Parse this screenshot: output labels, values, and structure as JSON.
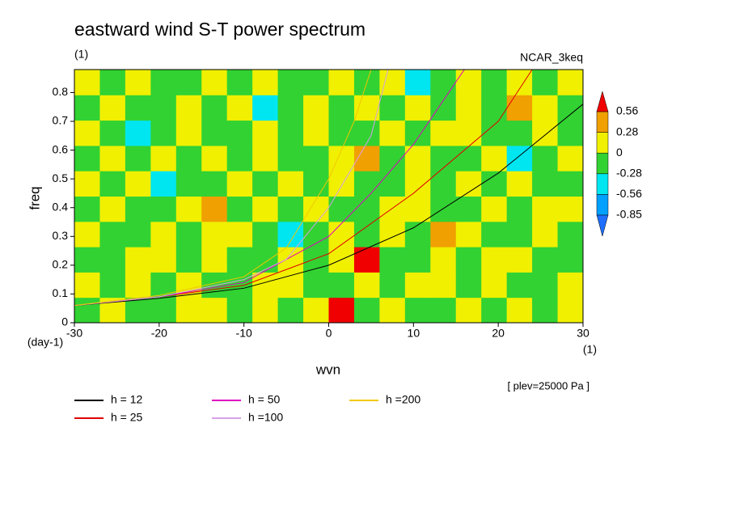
{
  "chart_data": {
    "type": "contour",
    "title": "eastward wind S-T power spectrum",
    "units": "(1)",
    "model": "NCAR_3keq",
    "x_label": "wvn",
    "x_units": "(1)",
    "y_label": "freq",
    "y_units": "(day-1)",
    "note": "[ plev=25000 Pa ]",
    "xlim": [
      -30,
      30
    ],
    "xticks": [
      -30,
      -20,
      -10,
      0,
      10,
      20,
      30
    ],
    "ylim": [
      0,
      0.88
    ],
    "yticks": [
      0,
      0.1,
      0.2,
      0.3,
      0.4,
      0.5,
      0.6,
      0.7,
      0.8
    ],
    "levels": [
      -0.85,
      -0.56,
      -0.28,
      0,
      0.28,
      0.56
    ],
    "colors": [
      "#1e6eff",
      "#00a0ff",
      "#00e6f0",
      "#32d232",
      "#f0f000",
      "#f0a000",
      "#f00000"
    ],
    "z": [
      [
        -0.1,
        0.1,
        -0.1,
        -0.1,
        0.1,
        0.1,
        -0.1,
        0.1,
        -0.1,
        0.1,
        0.7,
        -0.1,
        0.1,
        -0.1,
        -0.1,
        0.1,
        -0.1,
        0.1,
        -0.1,
        0.1
      ],
      [
        0.1,
        -0.1,
        0.1,
        -0.1,
        0.1,
        -0.1,
        -0.1,
        0.1,
        0.1,
        -0.1,
        -0.1,
        0.1,
        -0.1,
        0.1,
        0.1,
        -0.1,
        0.1,
        -0.1,
        -0.1,
        0.1
      ],
      [
        -0.1,
        -0.1,
        0.1,
        0.1,
        -0.1,
        0.1,
        -0.1,
        -0.1,
        0.1,
        -0.1,
        0.1,
        0.7,
        -0.1,
        -0.1,
        0.1,
        -0.1,
        0.1,
        0.1,
        -0.1,
        -0.1
      ],
      [
        0.1,
        -0.1,
        -0.1,
        0.1,
        -0.1,
        0.1,
        0.1,
        -0.1,
        -0.4,
        -0.1,
        0.1,
        -0.1,
        0.1,
        -0.1,
        0.4,
        0.1,
        -0.1,
        -0.1,
        0.1,
        -0.1
      ],
      [
        -0.1,
        0.1,
        -0.1,
        -0.1,
        0.1,
        0.4,
        -0.1,
        0.1,
        -0.1,
        0.1,
        -0.1,
        -0.1,
        0.1,
        0.1,
        -0.1,
        -0.1,
        0.1,
        -0.1,
        0.1,
        0.1
      ],
      [
        0.1,
        -0.1,
        0.1,
        -0.4,
        -0.1,
        -0.1,
        0.1,
        -0.1,
        0.1,
        -0.1,
        0.1,
        -0.1,
        -0.1,
        0.1,
        -0.1,
        0.1,
        -0.1,
        0.1,
        -0.1,
        -0.1
      ],
      [
        -0.1,
        0.1,
        -0.1,
        0.1,
        -0.1,
        0.1,
        -0.1,
        0.1,
        -0.1,
        -0.1,
        0.1,
        0.4,
        -0.1,
        0.1,
        -0.1,
        -0.1,
        0.1,
        -0.4,
        -0.1,
        0.1
      ],
      [
        0.1,
        -0.1,
        -0.4,
        -0.1,
        0.1,
        -0.1,
        -0.1,
        0.1,
        -0.1,
        0.1,
        -0.1,
        -0.1,
        0.1,
        -0.1,
        0.1,
        0.1,
        -0.1,
        -0.1,
        0.1,
        -0.1
      ],
      [
        -0.1,
        0.1,
        -0.1,
        -0.1,
        0.1,
        -0.1,
        0.1,
        -0.4,
        -0.1,
        0.1,
        -0.1,
        0.1,
        -0.1,
        0.1,
        -0.1,
        0.1,
        -0.1,
        0.4,
        0.1,
        -0.1
      ],
      [
        0.1,
        -0.1,
        0.1,
        -0.1,
        -0.1,
        0.1,
        -0.1,
        0.1,
        -0.1,
        -0.1,
        0.1,
        -0.1,
        0.1,
        -0.4,
        -0.1,
        0.1,
        -0.1,
        0.1,
        -0.1,
        0.1
      ]
    ],
    "series": [
      {
        "name": "h = 12",
        "color": "#000000",
        "x": [
          -30,
          -20,
          -10,
          0,
          10,
          20,
          30
        ],
        "values": [
          0.06,
          0.085,
          0.12,
          0.2,
          0.33,
          0.52,
          0.76
        ]
      },
      {
        "name": "h = 25",
        "color": "#e00000",
        "x": [
          -30,
          -20,
          -10,
          0,
          10,
          20,
          24
        ],
        "values": [
          0.06,
          0.09,
          0.13,
          0.24,
          0.45,
          0.7,
          0.88
        ]
      },
      {
        "name": "h = 50",
        "color": "#e000c0",
        "x": [
          -30,
          -20,
          -10,
          0,
          5,
          10,
          16
        ],
        "values": [
          0.06,
          0.09,
          0.14,
          0.3,
          0.45,
          0.62,
          0.88
        ]
      },
      {
        "name": "h =100",
        "color": "#d8a0e8",
        "x": [
          -30,
          -20,
          -10,
          -5,
          0,
          5,
          7
        ],
        "values": [
          0.06,
          0.09,
          0.15,
          0.22,
          0.4,
          0.65,
          0.88
        ]
      },
      {
        "name": "h =200",
        "color": "#f0c800",
        "x": [
          -30,
          -20,
          -10,
          -5,
          0,
          3,
          5
        ],
        "values": [
          0.06,
          0.095,
          0.16,
          0.26,
          0.5,
          0.7,
          0.88
        ]
      }
    ]
  }
}
